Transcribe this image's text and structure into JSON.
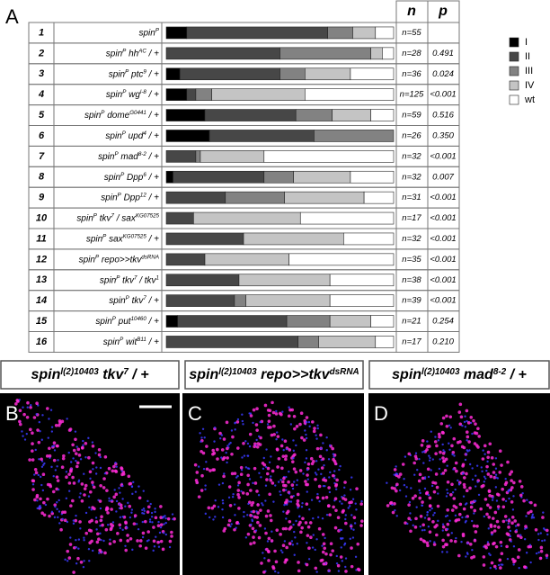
{
  "panel_a": {
    "label": "A",
    "headers": {
      "n": "n",
      "p": "p"
    },
    "xlim": [
      0,
      100
    ],
    "classes": [
      {
        "name": "I",
        "color": "#000000"
      },
      {
        "name": "II",
        "color": "#474747"
      },
      {
        "name": "III",
        "color": "#828282"
      },
      {
        "name": "IV",
        "color": "#c4c4c4"
      },
      {
        "name": "wt",
        "color": "#ffffff"
      }
    ],
    "rows": [
      {
        "index": "1",
        "genotype": [
          "spin",
          "P"
        ],
        "values": [
          9,
          62,
          11,
          10,
          8
        ],
        "n": "n=55",
        "p": null
      },
      {
        "index": "2",
        "genotype": [
          "spin",
          "P",
          " hh",
          "AC",
          " / +"
        ],
        "values": [
          0,
          50,
          40,
          5,
          5
        ],
        "n": "n=28",
        "p": "0.491"
      },
      {
        "index": "3",
        "genotype": [
          "spin",
          "P",
          " ptc",
          "9",
          " / +"
        ],
        "values": [
          6,
          44,
          11,
          20,
          19
        ],
        "n": "n=36",
        "p": "0.024"
      },
      {
        "index": "4",
        "genotype": [
          "spin",
          "P",
          " wg",
          "l-8",
          " / +"
        ],
        "values": [
          9,
          4,
          7,
          41,
          39
        ],
        "n": "n=125",
        "p": "<0.001"
      },
      {
        "index": "5",
        "genotype": [
          "spin",
          "P",
          " dome",
          "G0441",
          " / +"
        ],
        "values": [
          17,
          40,
          16,
          17,
          10
        ],
        "n": "n=59",
        "p": "0.516"
      },
      {
        "index": "6",
        "genotype": [
          "spin",
          "P",
          " upd",
          "4",
          " / +"
        ],
        "values": [
          19,
          46,
          35,
          0,
          0
        ],
        "n": "n=26",
        "p": "0.350"
      },
      {
        "index": "7",
        "genotype": [
          "spin",
          "P",
          " mad",
          "8-2",
          " / +"
        ],
        "values": [
          0,
          13,
          2,
          28,
          57
        ],
        "n": "n=32",
        "p": "<0.001"
      },
      {
        "index": "8",
        "genotype": [
          "spin",
          "P",
          " Dpp",
          "6",
          " / +"
        ],
        "values": [
          3,
          40,
          13,
          25,
          19
        ],
        "n": "n=32",
        "p": "0.007"
      },
      {
        "index": "9",
        "genotype": [
          "spin",
          "P",
          " Dpp",
          "12",
          " / +"
        ],
        "values": [
          0,
          26,
          26,
          35,
          13
        ],
        "n": "n=31",
        "p": "<0.001"
      },
      {
        "index": "10",
        "genotype": [
          "spin",
          "P",
          " tkv",
          "7",
          " / sax",
          "KG07525"
        ],
        "values": [
          0,
          12,
          0,
          47,
          41
        ],
        "n": "n=17",
        "p": "<0.001"
      },
      {
        "index": "11",
        "genotype": [
          "spin",
          "P",
          " sax",
          "KG07525",
          " / +"
        ],
        "values": [
          0,
          34,
          0,
          44,
          22
        ],
        "n": "n=32",
        "p": "<0.001"
      },
      {
        "index": "12",
        "genotype": [
          "spin",
          "P",
          " repo>>tkv",
          "dsRNA"
        ],
        "values": [
          0,
          17,
          0,
          37,
          46
        ],
        "n": "n=35",
        "p": "<0.001"
      },
      {
        "index": "13",
        "genotype": [
          "spin",
          "P",
          " tkv",
          "7",
          " / tkv",
          "1"
        ],
        "values": [
          0,
          32,
          0,
          40,
          28
        ],
        "n": "n=38",
        "p": "<0.001"
      },
      {
        "index": "14",
        "genotype": [
          "spin",
          "P",
          " tkv",
          "7",
          " / +"
        ],
        "values": [
          0,
          30,
          5,
          37,
          28
        ],
        "n": "n=39",
        "p": "<0.001"
      },
      {
        "index": "15",
        "genotype": [
          "spin",
          "P",
          " put",
          "10460",
          " / +"
        ],
        "values": [
          5,
          48,
          19,
          18,
          10
        ],
        "n": "n=21",
        "p": "0.254"
      },
      {
        "index": "16",
        "genotype": [
          "spin",
          "P",
          " wit",
          "B11",
          " / +"
        ],
        "values": [
          0,
          58,
          9,
          25,
          8
        ],
        "n": "n=17",
        "p": "0.210"
      }
    ]
  },
  "panels": [
    {
      "label": "B",
      "title": [
        "spin",
        "l(2)10403",
        " tkv",
        "7",
        " / +"
      ]
    },
    {
      "label": "C",
      "title": [
        "spin",
        "l(2)10403",
        " repo>>tkv",
        "dsRNA"
      ]
    },
    {
      "label": "D",
      "title": [
        "spin",
        "l(2)10403",
        " mad",
        "8-2",
        " / +"
      ]
    }
  ]
}
